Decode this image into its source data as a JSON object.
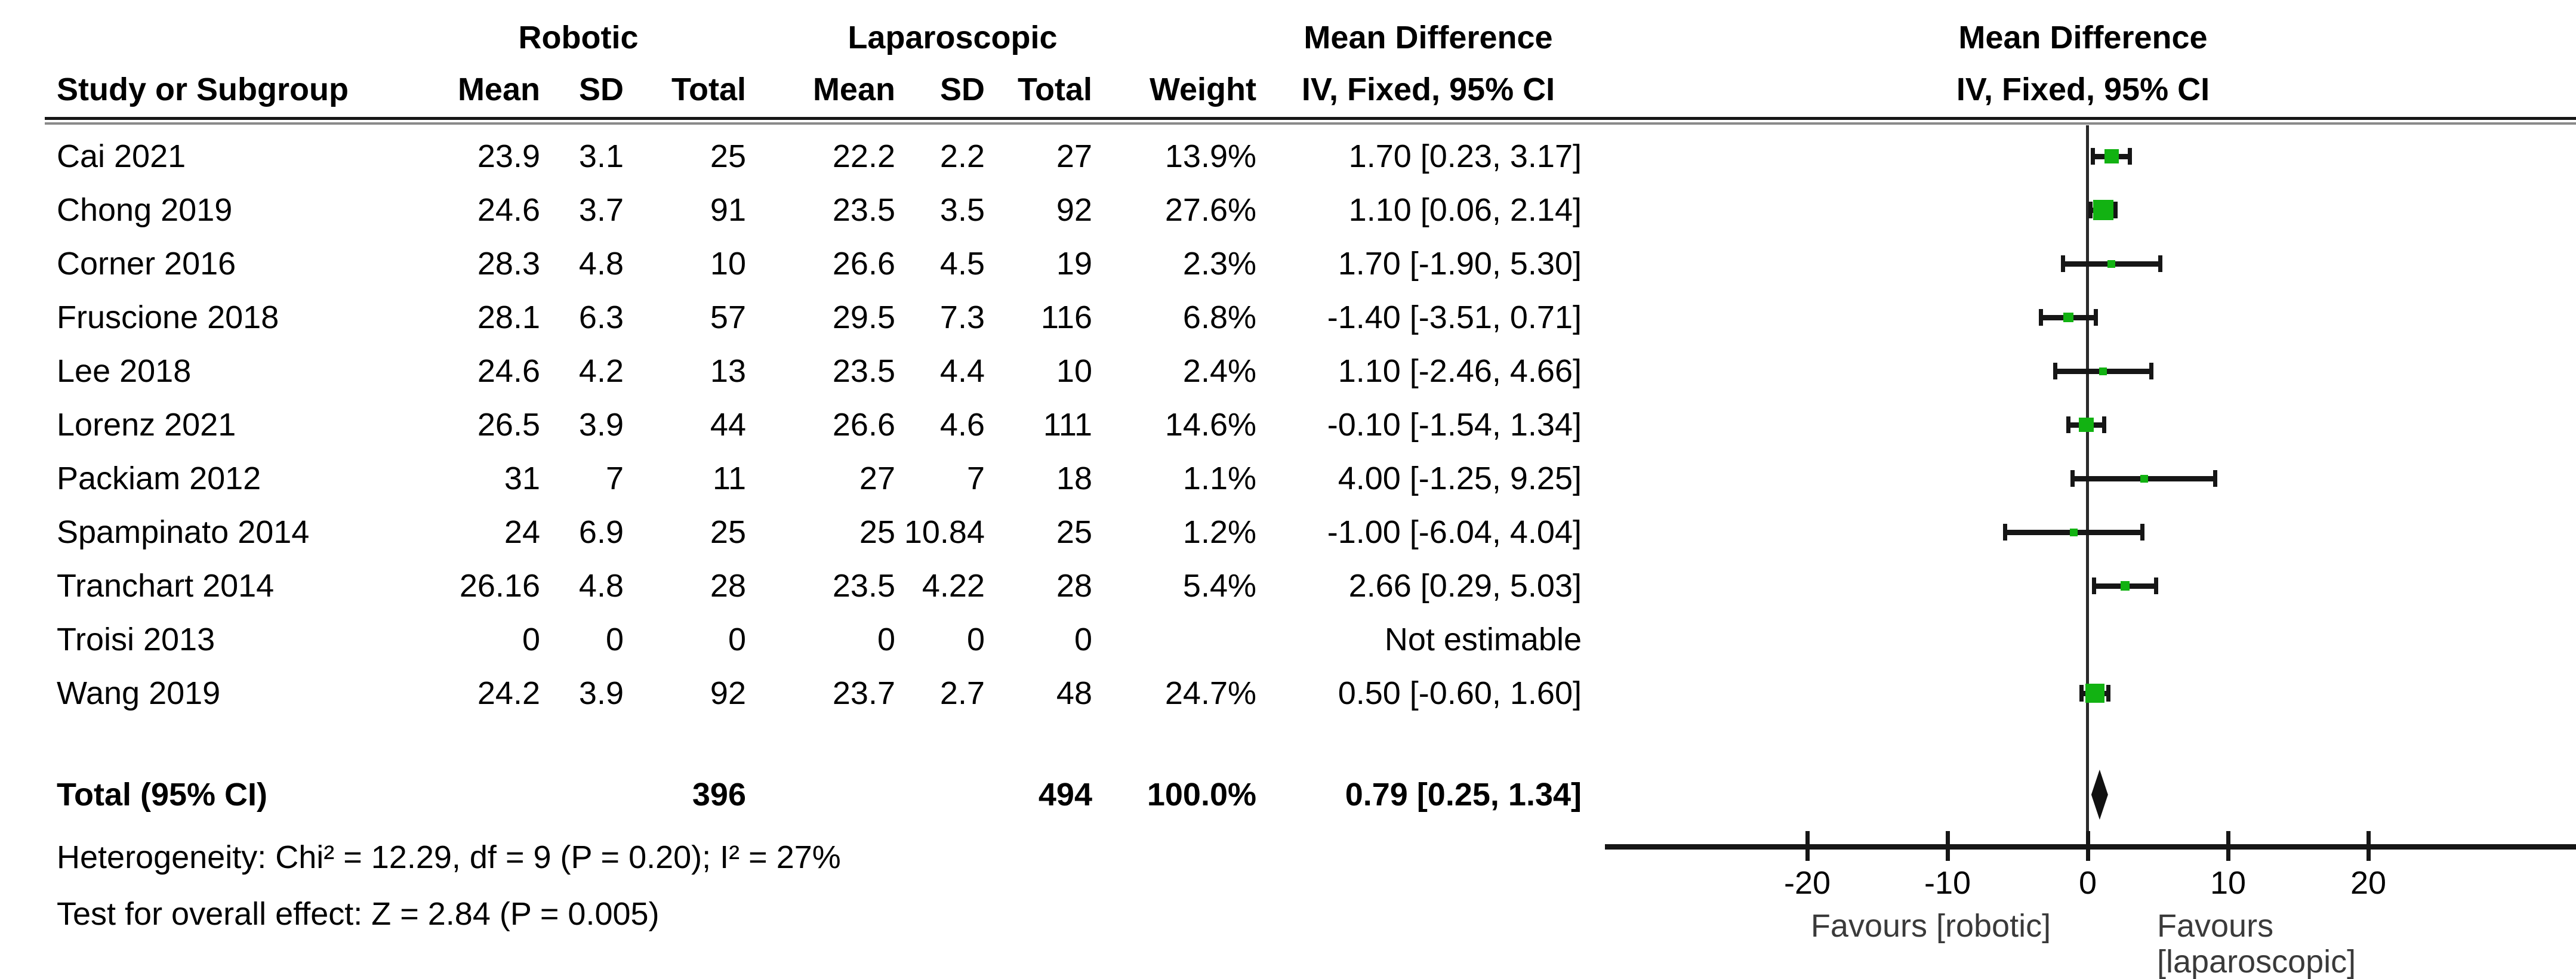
{
  "header": {
    "study_col": "Study or Subgroup",
    "group1": "Robotic",
    "group2": "Laparoscopic",
    "sub_mean1": "Mean",
    "sub_sd1": "SD",
    "sub_total1": "Total",
    "sub_mean2": "Mean",
    "sub_sd2": "SD",
    "sub_total2": "Total",
    "sub_weight": "Weight",
    "effect_line1": "Mean Difference",
    "effect_line2": "IV, Fixed, 95% CI",
    "plot_title_line1": "Mean Difference",
    "plot_title_line2": "IV, Fixed, 95% CI"
  },
  "studies": [
    {
      "name": "Cai 2021",
      "r_mean": "23.9",
      "r_sd": "3.1",
      "r_total": "25",
      "l_mean": "22.2",
      "l_sd": "2.2",
      "l_total": "27",
      "weight": "13.9%",
      "ci_text": "1.70 [0.23, 3.17]",
      "md": 1.7,
      "lo": 0.23,
      "hi": 3.17,
      "w": 13.9,
      "estimable": true
    },
    {
      "name": "Chong 2019",
      "r_mean": "24.6",
      "r_sd": "3.7",
      "r_total": "91",
      "l_mean": "23.5",
      "l_sd": "3.5",
      "l_total": "92",
      "weight": "27.6%",
      "ci_text": "1.10 [0.06, 2.14]",
      "md": 1.1,
      "lo": 0.06,
      "hi": 2.14,
      "w": 27.6,
      "estimable": true
    },
    {
      "name": "Corner 2016",
      "r_mean": "28.3",
      "r_sd": "4.8",
      "r_total": "10",
      "l_mean": "26.6",
      "l_sd": "4.5",
      "l_total": "19",
      "weight": "2.3%",
      "ci_text": "1.70 [-1.90, 5.30]",
      "md": 1.7,
      "lo": -1.9,
      "hi": 5.3,
      "w": 2.3,
      "estimable": true
    },
    {
      "name": "Fruscione 2018",
      "r_mean": "28.1",
      "r_sd": "6.3",
      "r_total": "57",
      "l_mean": "29.5",
      "l_sd": "7.3",
      "l_total": "116",
      "weight": "6.8%",
      "ci_text": "-1.40 [-3.51, 0.71]",
      "md": -1.4,
      "lo": -3.51,
      "hi": 0.71,
      "w": 6.8,
      "estimable": true
    },
    {
      "name": "Lee 2018",
      "r_mean": "24.6",
      "r_sd": "4.2",
      "r_total": "13",
      "l_mean": "23.5",
      "l_sd": "4.4",
      "l_total": "10",
      "weight": "2.4%",
      "ci_text": "1.10 [-2.46, 4.66]",
      "md": 1.1,
      "lo": -2.46,
      "hi": 4.66,
      "w": 2.4,
      "estimable": true
    },
    {
      "name": "Lorenz 2021",
      "r_mean": "26.5",
      "r_sd": "3.9",
      "r_total": "44",
      "l_mean": "26.6",
      "l_sd": "4.6",
      "l_total": "111",
      "weight": "14.6%",
      "ci_text": "-0.10 [-1.54, 1.34]",
      "md": -0.1,
      "lo": -1.54,
      "hi": 1.34,
      "w": 14.6,
      "estimable": true
    },
    {
      "name": "Packiam 2012",
      "r_mean": "31",
      "r_sd": "7",
      "r_total": "11",
      "l_mean": "27",
      "l_sd": "7",
      "l_total": "18",
      "weight": "1.1%",
      "ci_text": "4.00 [-1.25, 9.25]",
      "md": 4.0,
      "lo": -1.25,
      "hi": 9.25,
      "w": 1.1,
      "estimable": true
    },
    {
      "name": "Spampinato 2014",
      "r_mean": "24",
      "r_sd": "6.9",
      "r_total": "25",
      "l_mean": "25",
      "l_sd": "10.84",
      "l_total": "25",
      "weight": "1.2%",
      "ci_text": "-1.00 [-6.04, 4.04]",
      "md": -1.0,
      "lo": -6.04,
      "hi": 4.04,
      "w": 1.2,
      "estimable": true
    },
    {
      "name": "Tranchart 2014",
      "r_mean": "26.16",
      "r_sd": "4.8",
      "r_total": "28",
      "l_mean": "23.5",
      "l_sd": "4.22",
      "l_total": "28",
      "weight": "5.4%",
      "ci_text": "2.66 [0.29, 5.03]",
      "md": 2.66,
      "lo": 0.29,
      "hi": 5.03,
      "w": 5.4,
      "estimable": true
    },
    {
      "name": "Troisi 2013",
      "r_mean": "0",
      "r_sd": "0",
      "r_total": "0",
      "l_mean": "0",
      "l_sd": "0",
      "l_total": "0",
      "weight": "",
      "ci_text": "Not estimable",
      "estimable": false
    },
    {
      "name": "Wang 2019",
      "r_mean": "24.2",
      "r_sd": "3.9",
      "r_total": "92",
      "l_mean": "23.7",
      "l_sd": "2.7",
      "l_total": "48",
      "weight": "24.7%",
      "ci_text": "0.50 [-0.60, 1.60]",
      "md": 0.5,
      "lo": -0.6,
      "hi": 1.6,
      "w": 24.7,
      "estimable": true
    }
  ],
  "total": {
    "label": "Total (95% CI)",
    "r_total": "396",
    "l_total": "494",
    "weight": "100.0%",
    "ci_text": "0.79 [0.25, 1.34]",
    "md": 0.79,
    "lo": 0.25,
    "hi": 1.34
  },
  "footer": {
    "heterogeneity": "Heterogeneity: Chi² = 12.29, df = 9 (P = 0.20); I² = 27%",
    "overall_effect": "Test for overall effect: Z = 2.84 (P = 0.005)"
  },
  "axis": {
    "ticks": [
      "-20",
      "-10",
      "0",
      "10",
      "20"
    ],
    "tick_values": [
      -20,
      -10,
      0,
      10,
      20
    ],
    "favours_left": "Favours [robotic]",
    "favours_right": "Favours [laparoscopic]"
  },
  "colors": {
    "marker_green": "#12b212",
    "ink": "#161616"
  },
  "chart_data": {
    "type": "scatter",
    "subtype": "forest-plot",
    "title": "Mean Difference — IV, Fixed, 95% CI",
    "effect_measure": "Mean Difference (IV, Fixed, 95% CI)",
    "xlabel": "Mean Difference",
    "xticks": [
      -20,
      -10,
      0,
      10,
      20
    ],
    "xlim": [
      -34,
      35
    ],
    "legend_position": "none",
    "grid": false,
    "series": [
      {
        "study": "Cai 2021",
        "md": 1.7,
        "ci": [
          0.23,
          3.17
        ],
        "weight_pct": 13.9
      },
      {
        "study": "Chong 2019",
        "md": 1.1,
        "ci": [
          0.06,
          2.14
        ],
        "weight_pct": 27.6
      },
      {
        "study": "Corner 2016",
        "md": 1.7,
        "ci": [
          -1.9,
          5.3
        ],
        "weight_pct": 2.3
      },
      {
        "study": "Fruscione 2018",
        "md": -1.4,
        "ci": [
          -3.51,
          0.71
        ],
        "weight_pct": 6.8
      },
      {
        "study": "Lee 2018",
        "md": 1.1,
        "ci": [
          -2.46,
          4.66
        ],
        "weight_pct": 2.4
      },
      {
        "study": "Lorenz 2021",
        "md": -0.1,
        "ci": [
          -1.54,
          1.34
        ],
        "weight_pct": 14.6
      },
      {
        "study": "Packiam 2012",
        "md": 4.0,
        "ci": [
          -1.25,
          9.25
        ],
        "weight_pct": 1.1
      },
      {
        "study": "Spampinato 2014",
        "md": -1.0,
        "ci": [
          -6.04,
          4.04
        ],
        "weight_pct": 1.2
      },
      {
        "study": "Tranchart 2014",
        "md": 2.66,
        "ci": [
          0.29,
          5.03
        ],
        "weight_pct": 5.4
      },
      {
        "study": "Troisi 2013",
        "md": null,
        "ci": null,
        "weight_pct": null,
        "note": "Not estimable"
      },
      {
        "study": "Wang 2019",
        "md": 0.5,
        "ci": [
          -0.6,
          1.6
        ],
        "weight_pct": 24.7
      }
    ],
    "total": {
      "study": "Total (95% CI)",
      "md": 0.79,
      "ci": [
        0.25,
        1.34
      ],
      "weight_pct": 100.0,
      "n_robotic": 396,
      "n_laparoscopic": 494
    },
    "heterogeneity": {
      "chi2": 12.29,
      "df": 9,
      "p": 0.2,
      "i2_pct": 27
    },
    "overall_effect": {
      "z": 2.84,
      "p": 0.005
    },
    "annotations": {
      "favours_left": "Favours [robotic]",
      "favours_right": "Favours [laparoscopic]"
    }
  }
}
